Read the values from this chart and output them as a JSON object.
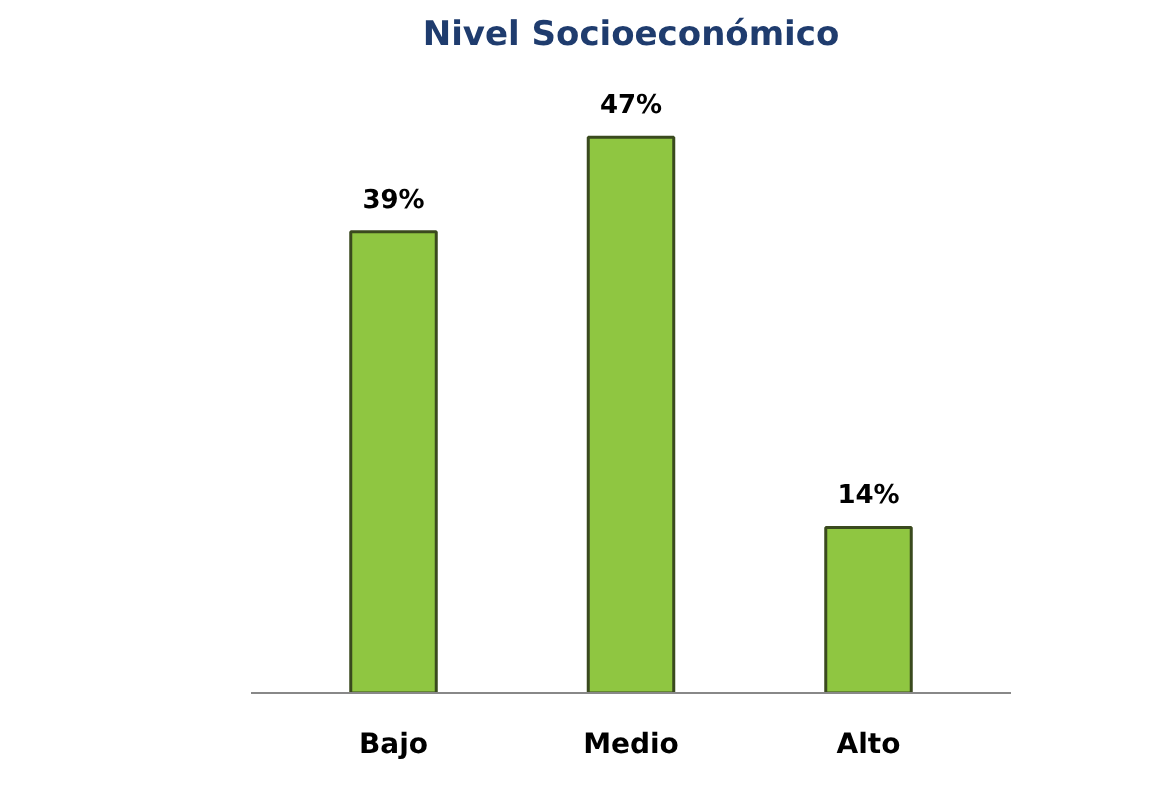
{
  "chart_data": {
    "type": "bar",
    "title": "Nivel Socioeconómico",
    "categories": [
      "Bajo",
      "Medio",
      "Alto"
    ],
    "values": [
      39,
      47,
      14
    ],
    "color": "#8fc641",
    "value_labels": [
      "39%",
      "47%",
      "14%"
    ]
  }
}
